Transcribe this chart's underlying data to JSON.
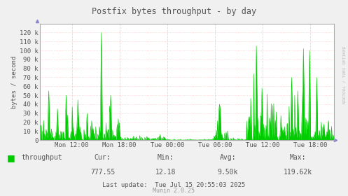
{
  "title": "Postfix bytes throughput - by day",
  "ylabel": "bytes / second",
  "xlabel_ticks": [
    "Mon 12:00",
    "Mon 18:00",
    "Tue 00:00",
    "Tue 06:00",
    "Tue 12:00",
    "Tue 18:00"
  ],
  "ylim": [
    0,
    130000
  ],
  "yticks": [
    0,
    10000,
    20000,
    30000,
    40000,
    50000,
    60000,
    70000,
    80000,
    90000,
    100000,
    110000,
    120000
  ],
  "ytick_labels": [
    "0",
    "10 k",
    "20 k",
    "30 k",
    "40 k",
    "50 k",
    "60 k",
    "70 k",
    "80 k",
    "90 k",
    "100 k",
    "110 k",
    "120 k"
  ],
  "line_color": "#00cc00",
  "fill_color": "#00cc00",
  "bg_color": "#f0f0f0",
  "plot_bg_color": "#ffffff",
  "grid_h_color": "#ffcccc",
  "grid_v_color": "#ffcccc",
  "axis_color": "#aaaaaa",
  "legend_label": "throughput",
  "legend_color": "#00cc00",
  "text_color": "#555555",
  "cur": "777.55",
  "min_val": "12.18",
  "avg_val": "9.50k",
  "max_val": "119.62k",
  "last_update": "Tue Jul 15 20:55:03 2025",
  "munin_version": "Munin 2.0.25",
  "watermark": "RRDTOOL / TOBI OETIKER",
  "num_points": 576
}
